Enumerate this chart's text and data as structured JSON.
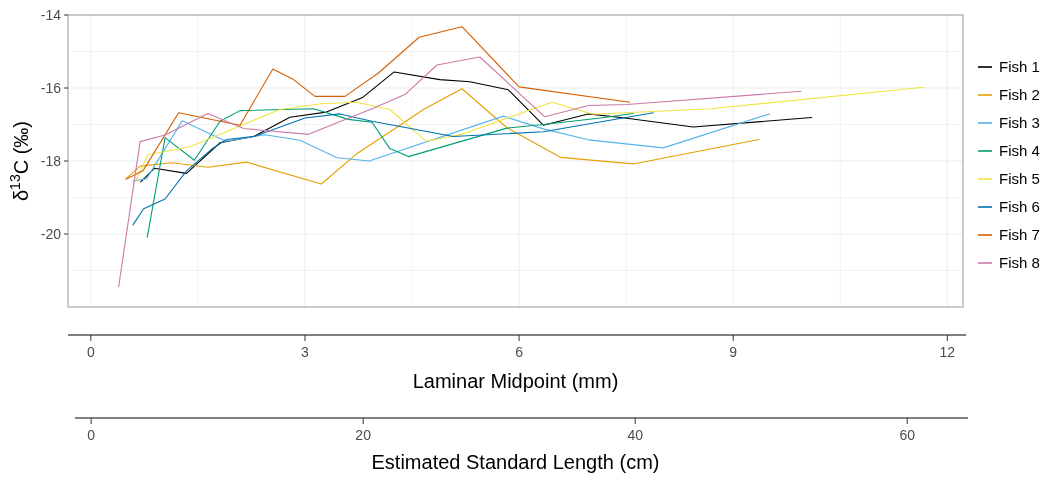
{
  "chart_data": {
    "type": "line",
    "xlabel": "Laminar Midpoint (mm)",
    "ylabel": "δ$^{13}$C (‰)",
    "x2label": "Estimated Standard Length (cm)",
    "xlim": [
      -0.32,
      12.22
    ],
    "xticks": [
      0,
      3,
      6,
      9,
      12
    ],
    "x2lim": [
      -1.7,
      64.1
    ],
    "x2ticks": [
      0,
      20,
      40,
      60
    ],
    "ylim": [
      -22,
      -14
    ],
    "yticks": [
      -20,
      -18,
      -16,
      -14
    ],
    "grid": true,
    "legend": "right",
    "line_style": "solid",
    "marker": "none",
    "series": [
      {
        "name": "Fish 1",
        "color": "#000000",
        "x": [
          0.7,
          0.89,
          1.34,
          1.81,
          2.28,
          2.79,
          3.3,
          3.8,
          4.25,
          4.89,
          5.31,
          5.85,
          6.34,
          6.97,
          7.51,
          8.44,
          10.1
        ],
        "values": [
          -18.57,
          -18.2,
          -18.34,
          -17.5,
          -17.33,
          -16.8,
          -16.66,
          -16.27,
          -15.56,
          -15.77,
          -15.83,
          -16.05,
          -17.02,
          -16.71,
          -16.83,
          -17.07,
          -16.81
        ]
      },
      {
        "name": "Fish 2",
        "color": "#e69f00",
        "x": [
          0.5,
          0.69,
          1.13,
          1.64,
          2.18,
          3.23,
          3.72,
          4.33,
          4.66,
          5.2,
          5.83,
          6.58,
          7.6,
          9.36
        ],
        "values": [
          -18.47,
          -18.14,
          -18.05,
          -18.17,
          -18.03,
          -18.63,
          -17.81,
          -17.02,
          -16.59,
          -16.02,
          -17.09,
          -17.9,
          -18.08,
          -17.41
        ]
      },
      {
        "name": "Fish 3",
        "color": "#56b4e9",
        "x": [
          0.59,
          0.78,
          1.28,
          1.89,
          2.44,
          2.93,
          3.45,
          3.9,
          5.78,
          6.34,
          6.97,
          8.02,
          9.51
        ],
        "values": [
          -18.55,
          -18.49,
          -16.9,
          -17.46,
          -17.28,
          -17.43,
          -17.91,
          -18.0,
          -16.77,
          -17.12,
          -17.42,
          -17.64,
          -16.71
        ]
      },
      {
        "name": "Fish 4",
        "color": "#009e73",
        "x": [
          0.79,
          1.04,
          1.45,
          1.81,
          2.09,
          3.12,
          3.61,
          3.94,
          4.19,
          4.45,
          5.83,
          6.34,
          7.14,
          7.6
        ],
        "values": [
          -20.09,
          -17.36,
          -17.98,
          -16.91,
          -16.62,
          -16.57,
          -16.86,
          -16.94,
          -17.66,
          -17.88,
          -17.1,
          -17.0,
          -16.82,
          -16.7
        ]
      },
      {
        "name": "Fish 5",
        "color": "#f0e442",
        "x": [
          0.63,
          0.8,
          1.39,
          2.09,
          2.65,
          3.23,
          3.72,
          4.19,
          4.7,
          5.2,
          6.46,
          7.04,
          8.68,
          11.67
        ],
        "values": [
          -18.54,
          -17.83,
          -17.61,
          -17.04,
          -16.59,
          -16.43,
          -16.39,
          -16.59,
          -17.46,
          -17.27,
          -16.39,
          -16.72,
          -16.57,
          -15.98
        ]
      },
      {
        "name": "Fish 6",
        "color": "#0072b2",
        "x": [
          0.59,
          0.74,
          1.04,
          1.34,
          1.69,
          1.9,
          2.3,
          3.0,
          3.49,
          3.94,
          5.08,
          6.34,
          7.88
        ],
        "values": [
          -19.75,
          -19.31,
          -19.04,
          -18.27,
          -17.68,
          -17.41,
          -17.32,
          -16.82,
          -16.71,
          -16.91,
          -17.33,
          -17.2,
          -16.68
        ]
      },
      {
        "name": "Fish 7",
        "color": "#d55e00",
        "x": [
          0.49,
          0.73,
          1.23,
          2.09,
          2.55,
          2.84,
          3.14,
          3.56,
          4.03,
          4.6,
          5.2,
          6.0,
          7.55
        ],
        "values": [
          -18.5,
          -18.27,
          -16.68,
          -17.02,
          -15.48,
          -15.77,
          -16.23,
          -16.23,
          -15.59,
          -14.61,
          -14.32,
          -15.97,
          -16.39
        ]
      },
      {
        "name": "Fish 8",
        "color": "#cc79a7",
        "x": [
          0.39,
          0.69,
          1.04,
          1.64,
          2.14,
          3.05,
          3.94,
          4.4,
          4.85,
          5.45,
          6.36,
          6.97,
          7.51,
          9.95
        ],
        "values": [
          -21.44,
          -17.47,
          -17.29,
          -16.7,
          -17.11,
          -17.27,
          -16.57,
          -16.18,
          -15.37,
          -15.15,
          -16.79,
          -16.48,
          -16.45,
          -16.09
        ]
      }
    ]
  }
}
